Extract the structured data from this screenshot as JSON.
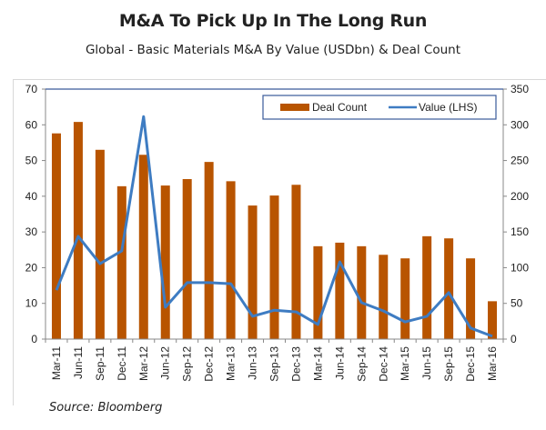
{
  "header": {
    "title": "M&A To Pick Up In The Long Run",
    "subtitle": "Global - Basic Materials M&A By Value (USDbn) & Deal Count"
  },
  "footer": {
    "source": "Source: Bloomberg"
  },
  "colors": {
    "bar": "#B85400",
    "line": "#3E7CC2",
    "legend_border": "#3A5A9A",
    "axis": "#888888"
  },
  "chart_data": {
    "type": "bar+line",
    "title": "M&A To Pick Up In The Long Run",
    "subtitle": "Global - Basic Materials M&A By Value (USDbn) & Deal Count",
    "categories": [
      "Mar-11",
      "Jun-11",
      "Sep-11",
      "Dec-11",
      "Mar-12",
      "Jun-12",
      "Sep-12",
      "Dec-12",
      "Mar-13",
      "Jun-13",
      "Sep-13",
      "Dec-13",
      "Mar-14",
      "Jun-14",
      "Sep-14",
      "Dec-14",
      "Mar-15",
      "Jun-15",
      "Sep-15",
      "Dec-15",
      "Mar-16"
    ],
    "series": [
      {
        "name": "Deal Count",
        "type": "bar",
        "axis": "right",
        "values": [
          288,
          304,
          265,
          214,
          258,
          215,
          224,
          248,
          221,
          187,
          201,
          216,
          130,
          135,
          130,
          118,
          113,
          144,
          141,
          113,
          53
        ]
      },
      {
        "name": "Value (LHS)",
        "type": "line",
        "axis": "left",
        "values": [
          13.7,
          28.8,
          21.1,
          24.7,
          62.3,
          8.9,
          15.8,
          15.8,
          15.5,
          6.4,
          8.1,
          7.6,
          4.1,
          21.6,
          10.2,
          7.9,
          4.8,
          6.4,
          13.0,
          3.1,
          0.8
        ]
      }
    ],
    "left_axis": {
      "ylim": [
        0,
        70
      ],
      "ticks": [
        "0",
        "10",
        "20",
        "30",
        "40",
        "50",
        "60",
        "70"
      ]
    },
    "right_axis": {
      "ylim": [
        0,
        350
      ],
      "ticks": [
        "0",
        "50",
        "100",
        "150",
        "200",
        "250",
        "300",
        "350"
      ]
    },
    "xlabel": "",
    "ylabel": "",
    "legend": {
      "position": "top-right",
      "entries": [
        "Deal Count",
        "Value (LHS)"
      ]
    },
    "grid": false
  }
}
